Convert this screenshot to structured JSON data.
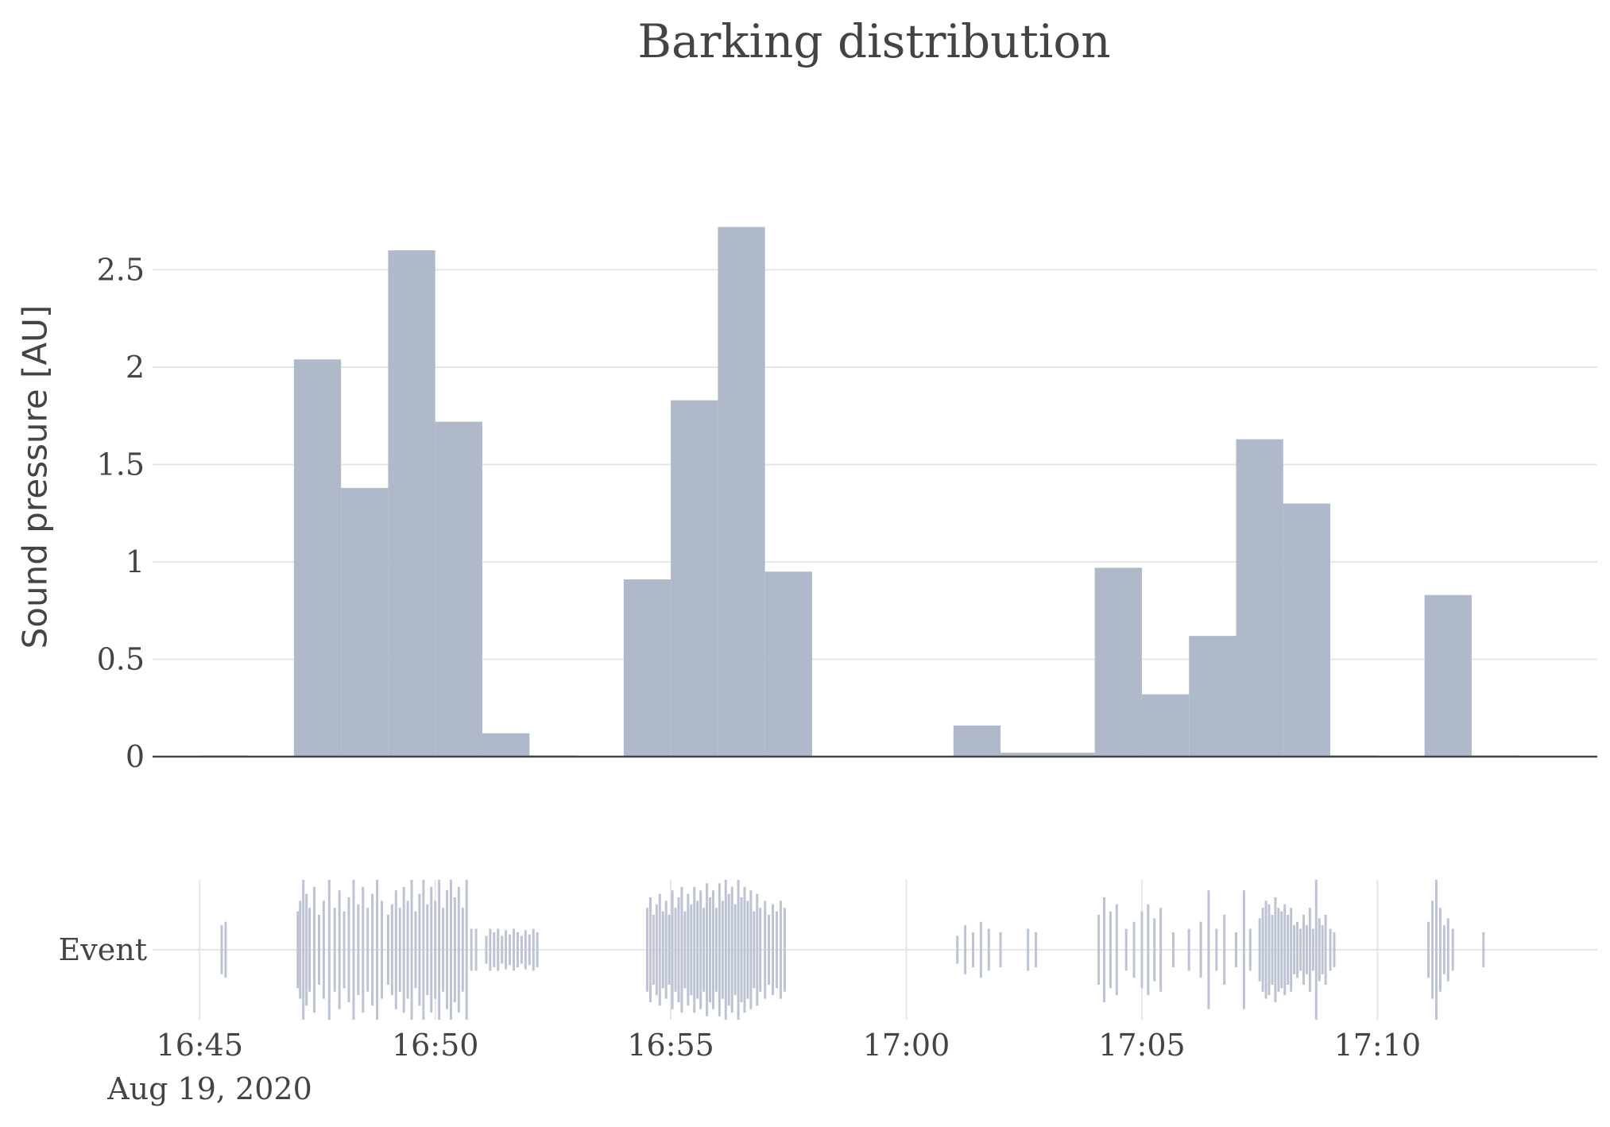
{
  "chart_data": {
    "type": "bar",
    "title": "Barking distribution",
    "date_label": "Aug 19, 2020",
    "ylabel": "Sound pressure [AU]",
    "event_label": "Event",
    "bar_color": "#b0b9ca",
    "event_color": "#bcc3d2",
    "grid": true,
    "ylim": [
      0,
      2.85
    ],
    "y_ticks": [
      {
        "value": 0,
        "label": "0"
      },
      {
        "value": 0.5,
        "label": "0.5"
      },
      {
        "value": 1,
        "label": "1"
      },
      {
        "value": 1.5,
        "label": "1.5"
      },
      {
        "value": 2,
        "label": "2"
      },
      {
        "value": 2.5,
        "label": "2.5"
      }
    ],
    "x_range": [
      "16:44:00",
      "17:14:40"
    ],
    "x_ticks": [
      "16:45",
      "16:50",
      "16:55",
      "17:00",
      "17:05",
      "17:10"
    ],
    "bin_width_seconds": 60,
    "bins": [
      {
        "start": "16:45:00",
        "value": 0.005
      },
      {
        "start": "16:47:00",
        "value": 2.04
      },
      {
        "start": "16:48:00",
        "value": 1.38
      },
      {
        "start": "16:49:00",
        "value": 2.6
      },
      {
        "start": "16:50:00",
        "value": 1.72
      },
      {
        "start": "16:51:00",
        "value": 0.12
      },
      {
        "start": "16:52:00",
        "value": 0.005
      },
      {
        "start": "16:54:00",
        "value": 0.91
      },
      {
        "start": "16:55:00",
        "value": 1.83
      },
      {
        "start": "16:56:00",
        "value": 2.72
      },
      {
        "start": "16:57:00",
        "value": 0.95
      },
      {
        "start": "17:01:00",
        "value": 0.16
      },
      {
        "start": "17:02:00",
        "value": 0.02
      },
      {
        "start": "17:03:00",
        "value": 0.02
      },
      {
        "start": "17:04:00",
        "value": 0.97
      },
      {
        "start": "17:05:00",
        "value": 0.32
      },
      {
        "start": "17:06:00",
        "value": 0.62
      },
      {
        "start": "17:07:00",
        "value": 1.63
      },
      {
        "start": "17:08:00",
        "value": 1.3
      },
      {
        "start": "17:09:00",
        "value": 0.005
      },
      {
        "start": "17:11:00",
        "value": 0.83
      },
      {
        "start": "17:12:00",
        "value": 0.005
      }
    ],
    "events": [
      {
        "t": "16:45:28",
        "h": 0.35
      },
      {
        "t": "16:45:33",
        "h": 0.4
      },
      {
        "t": "16:47:05",
        "h": 0.55
      },
      {
        "t": "16:47:08",
        "h": 0.7
      },
      {
        "t": "16:47:12",
        "h": 1.0
      },
      {
        "t": "16:47:16",
        "h": 0.8
      },
      {
        "t": "16:47:20",
        "h": 0.6
      },
      {
        "t": "16:47:26",
        "h": 0.9
      },
      {
        "t": "16:47:32",
        "h": 0.5
      },
      {
        "t": "16:47:38",
        "h": 0.7
      },
      {
        "t": "16:47:45",
        "h": 1.0
      },
      {
        "t": "16:47:52",
        "h": 0.6
      },
      {
        "t": "16:47:58",
        "h": 0.85
      },
      {
        "t": "16:48:04",
        "h": 0.55
      },
      {
        "t": "16:48:10",
        "h": 0.75
      },
      {
        "t": "16:48:16",
        "h": 1.0
      },
      {
        "t": "16:48:22",
        "h": 0.65
      },
      {
        "t": "16:48:28",
        "h": 0.9
      },
      {
        "t": "16:48:34",
        "h": 0.6
      },
      {
        "t": "16:48:40",
        "h": 0.8
      },
      {
        "t": "16:48:46",
        "h": 1.0
      },
      {
        "t": "16:48:52",
        "h": 0.7
      },
      {
        "t": "16:49:00",
        "h": 0.5
      },
      {
        "t": "16:49:05",
        "h": 0.65
      },
      {
        "t": "16:49:10",
        "h": 0.85
      },
      {
        "t": "16:49:15",
        "h": 0.6
      },
      {
        "t": "16:49:20",
        "h": 0.9
      },
      {
        "t": "16:49:25",
        "h": 0.7
      },
      {
        "t": "16:49:30",
        "h": 1.0
      },
      {
        "t": "16:49:35",
        "h": 0.55
      },
      {
        "t": "16:49:40",
        "h": 0.8
      },
      {
        "t": "16:49:45",
        "h": 1.0
      },
      {
        "t": "16:49:50",
        "h": 0.65
      },
      {
        "t": "16:49:55",
        "h": 0.9
      },
      {
        "t": "16:50:00",
        "h": 0.7
      },
      {
        "t": "16:50:05",
        "h": 1.0
      },
      {
        "t": "16:50:10",
        "h": 0.6
      },
      {
        "t": "16:50:15",
        "h": 0.85
      },
      {
        "t": "16:50:20",
        "h": 1.0
      },
      {
        "t": "16:50:25",
        "h": 0.75
      },
      {
        "t": "16:50:30",
        "h": 0.9
      },
      {
        "t": "16:50:35",
        "h": 0.6
      },
      {
        "t": "16:50:40",
        "h": 1.0
      },
      {
        "t": "16:50:46",
        "h": 0.3
      },
      {
        "t": "16:50:52",
        "h": 0.3
      },
      {
        "t": "16:51:05",
        "h": 0.2
      },
      {
        "t": "16:51:10",
        "h": 0.3
      },
      {
        "t": "16:51:15",
        "h": 0.25
      },
      {
        "t": "16:51:20",
        "h": 0.3
      },
      {
        "t": "16:51:25",
        "h": 0.2
      },
      {
        "t": "16:51:30",
        "h": 0.28
      },
      {
        "t": "16:51:35",
        "h": 0.22
      },
      {
        "t": "16:51:40",
        "h": 0.3
      },
      {
        "t": "16:51:45",
        "h": 0.25
      },
      {
        "t": "16:51:50",
        "h": 0.2
      },
      {
        "t": "16:51:55",
        "h": 0.28
      },
      {
        "t": "16:52:00",
        "h": 0.22
      },
      {
        "t": "16:52:05",
        "h": 0.3
      },
      {
        "t": "16:52:10",
        "h": 0.25
      },
      {
        "t": "16:54:30",
        "h": 0.6
      },
      {
        "t": "16:54:34",
        "h": 0.75
      },
      {
        "t": "16:54:38",
        "h": 0.5
      },
      {
        "t": "16:54:42",
        "h": 0.65
      },
      {
        "t": "16:54:46",
        "h": 0.8
      },
      {
        "t": "16:54:50",
        "h": 0.55
      },
      {
        "t": "16:54:54",
        "h": 0.7
      },
      {
        "t": "16:54:58",
        "h": 0.5
      },
      {
        "t": "16:55:02",
        "h": 0.85
      },
      {
        "t": "16:55:06",
        "h": 0.6
      },
      {
        "t": "16:55:10",
        "h": 0.75
      },
      {
        "t": "16:55:14",
        "h": 0.9
      },
      {
        "t": "16:55:18",
        "h": 0.55
      },
      {
        "t": "16:55:22",
        "h": 0.8
      },
      {
        "t": "16:55:26",
        "h": 0.65
      },
      {
        "t": "16:55:30",
        "h": 0.9
      },
      {
        "t": "16:55:34",
        "h": 0.7
      },
      {
        "t": "16:55:38",
        "h": 0.85
      },
      {
        "t": "16:55:42",
        "h": 0.6
      },
      {
        "t": "16:55:46",
        "h": 0.95
      },
      {
        "t": "16:55:50",
        "h": 0.75
      },
      {
        "t": "16:55:54",
        "h": 0.85
      },
      {
        "t": "16:55:58",
        "h": 0.6
      },
      {
        "t": "16:56:02",
        "h": 0.95
      },
      {
        "t": "16:56:06",
        "h": 0.7
      },
      {
        "t": "16:56:10",
        "h": 1.0
      },
      {
        "t": "16:56:14",
        "h": 0.8
      },
      {
        "t": "16:56:18",
        "h": 0.9
      },
      {
        "t": "16:56:22",
        "h": 0.65
      },
      {
        "t": "16:56:26",
        "h": 1.0
      },
      {
        "t": "16:56:30",
        "h": 0.75
      },
      {
        "t": "16:56:34",
        "h": 0.9
      },
      {
        "t": "16:56:38",
        "h": 0.7
      },
      {
        "t": "16:56:42",
        "h": 0.85
      },
      {
        "t": "16:56:46",
        "h": 0.55
      },
      {
        "t": "16:56:50",
        "h": 0.8
      },
      {
        "t": "16:56:54",
        "h": 0.6
      },
      {
        "t": "16:57:00",
        "h": 0.7
      },
      {
        "t": "16:57:05",
        "h": 0.5
      },
      {
        "t": "16:57:10",
        "h": 0.65
      },
      {
        "t": "16:57:15",
        "h": 0.55
      },
      {
        "t": "16:57:20",
        "h": 0.7
      },
      {
        "t": "16:57:25",
        "h": 0.6
      },
      {
        "t": "17:01:05",
        "h": 0.2
      },
      {
        "t": "17:01:15",
        "h": 0.35
      },
      {
        "t": "17:01:25",
        "h": 0.25
      },
      {
        "t": "17:01:35",
        "h": 0.4
      },
      {
        "t": "17:01:45",
        "h": 0.3
      },
      {
        "t": "17:02:00",
        "h": 0.25
      },
      {
        "t": "17:02:35",
        "h": 0.3
      },
      {
        "t": "17:02:45",
        "h": 0.25
      },
      {
        "t": "17:04:05",
        "h": 0.5
      },
      {
        "t": "17:04:12",
        "h": 0.75
      },
      {
        "t": "17:04:20",
        "h": 0.55
      },
      {
        "t": "17:04:28",
        "h": 0.65
      },
      {
        "t": "17:04:40",
        "h": 0.3
      },
      {
        "t": "17:04:50",
        "h": 0.4
      },
      {
        "t": "17:05:00",
        "h": 0.55
      },
      {
        "t": "17:05:08",
        "h": 0.65
      },
      {
        "t": "17:05:16",
        "h": 0.45
      },
      {
        "t": "17:05:24",
        "h": 0.6
      },
      {
        "t": "17:05:40",
        "h": 0.25
      },
      {
        "t": "17:06:00",
        "h": 0.3
      },
      {
        "t": "17:06:15",
        "h": 0.4
      },
      {
        "t": "17:06:25",
        "h": 0.85
      },
      {
        "t": "17:06:35",
        "h": 0.3
      },
      {
        "t": "17:06:45",
        "h": 0.5
      },
      {
        "t": "17:07:00",
        "h": 0.25
      },
      {
        "t": "17:07:10",
        "h": 0.85
      },
      {
        "t": "17:07:18",
        "h": 0.3
      },
      {
        "t": "17:07:30",
        "h": 0.45
      },
      {
        "t": "17:07:34",
        "h": 0.6
      },
      {
        "t": "17:07:38",
        "h": 0.7
      },
      {
        "t": "17:07:42",
        "h": 0.65
      },
      {
        "t": "17:07:46",
        "h": 0.5
      },
      {
        "t": "17:07:50",
        "h": 0.75
      },
      {
        "t": "17:07:54",
        "h": 0.6
      },
      {
        "t": "17:07:58",
        "h": 0.55
      },
      {
        "t": "17:08:02",
        "h": 0.65
      },
      {
        "t": "17:08:06",
        "h": 0.5
      },
      {
        "t": "17:08:10",
        "h": 0.6
      },
      {
        "t": "17:08:14",
        "h": 0.35
      },
      {
        "t": "17:08:18",
        "h": 0.4
      },
      {
        "t": "17:08:22",
        "h": 0.3
      },
      {
        "t": "17:08:26",
        "h": 0.5
      },
      {
        "t": "17:08:30",
        "h": 0.35
      },
      {
        "t": "17:08:34",
        "h": 0.6
      },
      {
        "t": "17:08:38",
        "h": 0.3
      },
      {
        "t": "17:08:42",
        "h": 1.0
      },
      {
        "t": "17:08:46",
        "h": 0.45
      },
      {
        "t": "17:08:50",
        "h": 0.35
      },
      {
        "t": "17:08:54",
        "h": 0.5
      },
      {
        "t": "17:09:00",
        "h": 0.3
      },
      {
        "t": "17:09:05",
        "h": 0.25
      },
      {
        "t": "17:11:05",
        "h": 0.4
      },
      {
        "t": "17:11:10",
        "h": 0.7
      },
      {
        "t": "17:11:15",
        "h": 1.0
      },
      {
        "t": "17:11:20",
        "h": 0.6
      },
      {
        "t": "17:11:25",
        "h": 0.35
      },
      {
        "t": "17:11:30",
        "h": 0.45
      },
      {
        "t": "17:11:36",
        "h": 0.3
      },
      {
        "t": "17:12:15",
        "h": 0.25
      }
    ]
  }
}
